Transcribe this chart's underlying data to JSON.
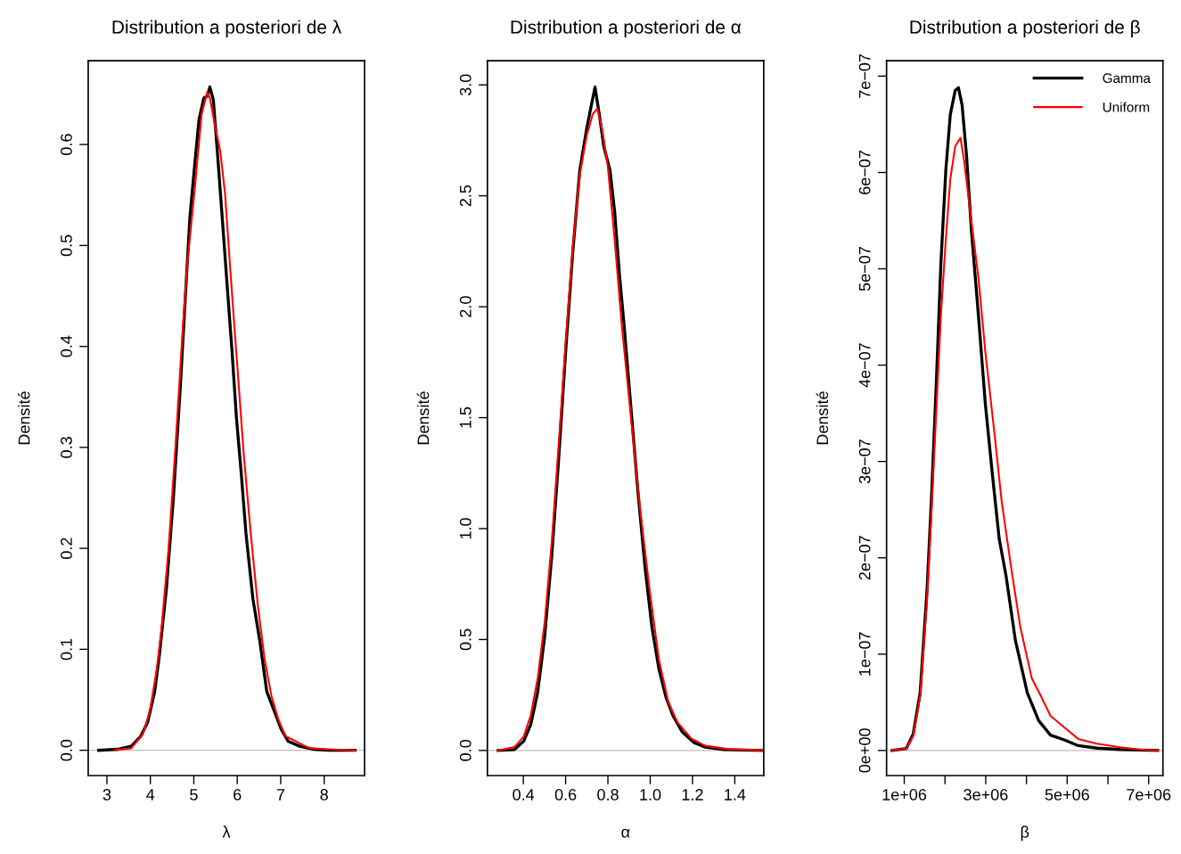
{
  "chart_data": [
    {
      "type": "line",
      "title": "Distribution a posteriori de λ",
      "xlabel": "λ",
      "ylabel": "Densité",
      "xlim": [
        2.57,
        8.93
      ],
      "ylim": [
        -0.025,
        0.683
      ],
      "xticks": [
        3,
        4,
        5,
        6,
        7,
        8
      ],
      "yticks": [
        {
          "value": 0,
          "label": "0.0"
        },
        0.1,
        0.2,
        0.3,
        0.4,
        0.5,
        0.6
      ],
      "grid": false,
      "ref_lines": [
        {
          "axis": "y",
          "value": 0,
          "color": "#bebebe"
        }
      ],
      "series": [
        {
          "color": "#000000",
          "x": [
            2.81,
            3.24,
            3.56,
            3.78,
            3.94,
            4.1,
            4.21,
            4.37,
            4.53,
            4.69,
            4.8,
            4.91,
            5.01,
            5.12,
            5.23,
            5.31,
            5.37,
            5.45,
            5.55,
            5.66,
            5.77,
            5.88,
            5.98,
            6.09,
            6.2,
            6.36,
            6.52,
            6.68,
            6.85,
            7.01,
            7.17,
            7.44,
            7.76,
            8.09,
            8.71
          ],
          "values": [
            0,
            0.001,
            0.004,
            0.014,
            0.028,
            0.058,
            0.095,
            0.16,
            0.25,
            0.36,
            0.445,
            0.528,
            0.575,
            0.625,
            0.646,
            0.648,
            0.657,
            0.644,
            0.588,
            0.524,
            0.459,
            0.395,
            0.33,
            0.275,
            0.215,
            0.15,
            0.108,
            0.058,
            0.039,
            0.021,
            0.009,
            0.004,
            0.001,
            0,
            0
          ]
        },
        {
          "color": "#ff0000",
          "x": [
            3.18,
            3.56,
            3.83,
            3.99,
            4.15,
            4.26,
            4.42,
            4.58,
            4.74,
            4.85,
            5.01,
            5.18,
            5.31,
            5.37,
            5.5,
            5.61,
            5.72,
            5.83,
            5.93,
            6.04,
            6.15,
            6.31,
            6.47,
            6.63,
            6.79,
            6.95,
            7.11,
            7.39,
            7.66,
            8.09,
            8.71
          ],
          "values": [
            0,
            0.002,
            0.016,
            0.039,
            0.081,
            0.122,
            0.2,
            0.302,
            0.413,
            0.482,
            0.551,
            0.63,
            0.652,
            0.646,
            0.616,
            0.593,
            0.551,
            0.482,
            0.422,
            0.358,
            0.293,
            0.215,
            0.145,
            0.09,
            0.053,
            0.03,
            0.014,
            0.008,
            0.002,
            0.001,
            0
          ]
        }
      ]
    },
    {
      "type": "line",
      "title": "Distribution a posteriori de α",
      "xlabel": "α",
      "ylabel": "Densité",
      "xlim": [
        0.23,
        1.537
      ],
      "ylim": [
        -0.113,
        3.109
      ],
      "xticks": [
        0.4,
        0.6,
        0.8,
        {
          "value": 1.0,
          "label": "1.0"
        },
        1.2,
        1.4
      ],
      "yticks": [
        {
          "value": 0,
          "label": "0.0"
        },
        0.5,
        {
          "value": 1,
          "label": "1.0"
        },
        1.5,
        {
          "value": 2,
          "label": "2.0"
        },
        2.5,
        {
          "value": 3,
          "label": "3.0"
        }
      ],
      "grid": false,
      "ref_lines": [
        {
          "axis": "y",
          "value": 0,
          "color": "#bebebe"
        }
      ],
      "series": [
        {
          "color": "#000000",
          "x": [
            0.281,
            0.358,
            0.402,
            0.435,
            0.468,
            0.501,
            0.534,
            0.567,
            0.6,
            0.633,
            0.667,
            0.7,
            0.722,
            0.739,
            0.759,
            0.781,
            0.81,
            0.832,
            0.854,
            0.876,
            0.909,
            0.942,
            0.975,
            1.008,
            1.041,
            1.074,
            1.107,
            1.151,
            1.206,
            1.261,
            1.349,
            1.526
          ],
          "values": [
            0,
            0.004,
            0.042,
            0.116,
            0.263,
            0.515,
            0.872,
            1.313,
            1.796,
            2.237,
            2.616,
            2.805,
            2.91,
            2.99,
            2.868,
            2.72,
            2.616,
            2.427,
            2.153,
            1.922,
            1.544,
            1.166,
            0.83,
            0.557,
            0.368,
            0.242,
            0.158,
            0.084,
            0.036,
            0.015,
            0.004,
            0
          ]
        },
        {
          "color": "#ff0000",
          "x": [
            0.281,
            0.358,
            0.402,
            0.435,
            0.468,
            0.501,
            0.534,
            0.567,
            0.6,
            0.633,
            0.667,
            0.7,
            0.728,
            0.75,
            0.772,
            0.799,
            0.832,
            0.865,
            0.909,
            0.953,
            0.997,
            1.041,
            1.085,
            1.129,
            1.195,
            1.261,
            1.371,
            1.537
          ],
          "values": [
            0,
            0.015,
            0.063,
            0.158,
            0.326,
            0.578,
            0.935,
            1.376,
            1.838,
            2.258,
            2.595,
            2.773,
            2.868,
            2.893,
            2.805,
            2.637,
            2.3,
            1.922,
            1.502,
            1.082,
            0.725,
            0.41,
            0.221,
            0.126,
            0.053,
            0.021,
            0.006,
            0
          ]
        }
      ]
    },
    {
      "type": "line",
      "title": "Distribution a posteriori de β",
      "xlabel": "β",
      "ylabel": "Densité",
      "xlim": [
        566000,
        7350000
      ],
      "ylim": [
        -2.6e-08,
        7.16e-07
      ],
      "xticks": [
        {
          "value": 1000000,
          "label": "1e+06"
        },
        {
          "value": 2000000,
          "label": null
        },
        {
          "value": 3000000,
          "label": "3e+06"
        },
        {
          "value": 4000000,
          "label": null
        },
        {
          "value": 5000000,
          "label": "5e+06"
        },
        {
          "value": 6000000,
          "label": null
        },
        {
          "value": 7000000,
          "label": "7e+06"
        }
      ],
      "yticks": [
        {
          "value": 0,
          "label": "0e+00"
        },
        {
          "value": 1e-07,
          "label": "1e−07"
        },
        {
          "value": 2e-07,
          "label": "2e−07"
        },
        {
          "value": 3e-07,
          "label": "3e−07"
        },
        {
          "value": 4e-07,
          "label": "4e−07"
        },
        {
          "value": 5e-07,
          "label": "5e−07"
        },
        {
          "value": 6e-07,
          "label": "6e−07"
        },
        {
          "value": 7e-07,
          "label": "7e−07"
        }
      ],
      "grid": false,
      "legend": "top right",
      "ref_lines": [
        {
          "axis": "y",
          "value": 0,
          "color": "#bebebe"
        }
      ],
      "series": [
        {
          "name": "Gamma",
          "color": "#000000",
          "x": [
            700000,
            1050000,
            1220000,
            1390000,
            1560000,
            1670000,
            1790000,
            1900000,
            2020000,
            2130000,
            2250000,
            2330000,
            2420000,
            2530000,
            2650000,
            2820000,
            2990000,
            3160000,
            3330000,
            3500000,
            3730000,
            4020000,
            4300000,
            4590000,
            4930000,
            5270000,
            5730000,
            6300000,
            7220000
          ],
          "values": [
            0,
            2e-09,
            1.7e-08,
            6e-08,
            1.67e-07,
            2.64e-07,
            3.85e-07,
            5.06e-07,
            6.02e-07,
            6.6e-07,
            6.85e-07,
            6.88e-07,
            6.7e-07,
            6.17e-07,
            5.39e-07,
            4.52e-07,
            3.6e-07,
            2.88e-07,
            2.2e-07,
            1.81e-07,
            1.14e-07,
            6e-08,
            3.1e-08,
            1.6e-08,
            1.1e-08,
            5e-09,
            2.4e-09,
            1e-09,
            0
          ]
        },
        {
          "name": "Uniform",
          "color": "#ff0000",
          "x": [
            700000,
            1050000,
            1220000,
            1390000,
            1560000,
            1670000,
            1790000,
            1900000,
            2020000,
            2130000,
            2250000,
            2380000,
            2470000,
            2650000,
            2820000,
            2990000,
            3220000,
            3390000,
            3620000,
            3850000,
            4130000,
            4360000,
            4590000,
            4930000,
            5270000,
            5730000,
            6300000,
            6760000,
            7220000
          ],
          "values": [
            0,
            2e-09,
            1.5e-08,
            5.6e-08,
            1.57e-07,
            2.49e-07,
            3.56e-07,
            4.52e-07,
            5.3e-07,
            5.93e-07,
            6.27e-07,
            6.36e-07,
            6.12e-07,
            5.49e-07,
            4.91e-07,
            4.14e-07,
            3.27e-07,
            2.59e-07,
            1.91e-07,
            1.28e-07,
            7.5e-08,
            5.6e-08,
            3.6e-08,
            2.4e-08,
            1.2e-08,
            7e-09,
            3.4e-09,
            1e-09,
            0
          ]
        }
      ]
    }
  ]
}
